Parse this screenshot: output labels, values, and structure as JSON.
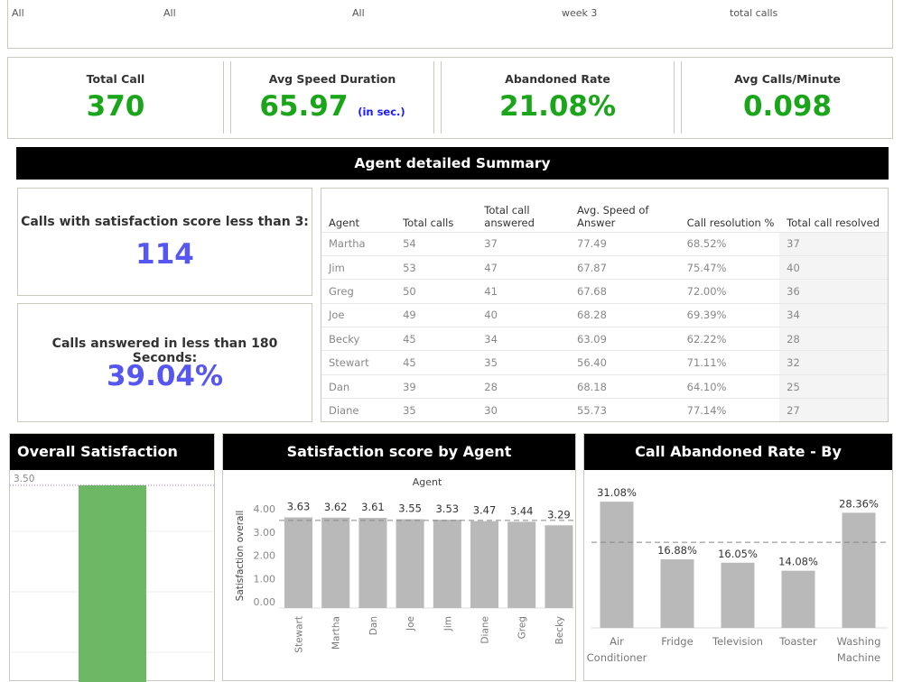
{
  "filters": [
    {
      "value": "All"
    },
    {
      "value": "All"
    },
    {
      "value": "All"
    },
    {
      "value": "week 3"
    },
    {
      "value": "total calls"
    }
  ],
  "kpis": [
    {
      "title": "Total Call",
      "value": "370",
      "unit": ""
    },
    {
      "title": "Avg Speed Duration",
      "value": "65.97",
      "unit": "(in sec.)"
    },
    {
      "title": "Abandoned Rate",
      "value": "21.08%",
      "unit": ""
    },
    {
      "title": "Avg Calls/Minute",
      "value": "0.098",
      "unit": ""
    }
  ],
  "summary_banner": "Agent detailed Summary",
  "stats": {
    "satisfaction_label": "Calls with satisfaction score less than 3:",
    "satisfaction_value": "114",
    "answered_label": "Calls answered in less than 180 Seconds:",
    "answered_value": "39.04%"
  },
  "agent_table": {
    "headers": [
      "Agent",
      "Total calls",
      "Total call answered",
      "Avg. Speed of Answer",
      "Call resolution %",
      "Total call resolved"
    ],
    "rows": [
      [
        "Martha",
        "54",
        "37",
        "77.49",
        "68.52%",
        "37"
      ],
      [
        "Jim",
        "53",
        "47",
        "67.87",
        "75.47%",
        "40"
      ],
      [
        "Greg",
        "50",
        "41",
        "67.68",
        "72.00%",
        "36"
      ],
      [
        "Joe",
        "49",
        "40",
        "68.28",
        "69.39%",
        "34"
      ],
      [
        "Becky",
        "45",
        "34",
        "63.09",
        "62.22%",
        "28"
      ],
      [
        "Stewart",
        "45",
        "35",
        "56.40",
        "71.11%",
        "32"
      ],
      [
        "Dan",
        "39",
        "28",
        "68.18",
        "64.10%",
        "25"
      ],
      [
        "Diane",
        "35",
        "30",
        "55.73",
        "77.14%",
        "27"
      ]
    ]
  },
  "colors": {
    "kpi_green": "#1aa51a",
    "stat_blue": "#5656f0",
    "bar_grey": "#b9b9b9",
    "bar_green": "#6db864"
  },
  "chart_data": [
    {
      "type": "bar",
      "title": "Overall Satisfaction Score",
      "values": [
        3.5
      ],
      "reference_label": "3.50"
    },
    {
      "type": "bar",
      "title": "Satisfaction score by Agent",
      "xlabel": "Agent",
      "ylabel": "Satisfaction overall",
      "categories": [
        "Stewart",
        "Martha",
        "Dan",
        "Joe",
        "Jim",
        "Diane",
        "Greg",
        "Becky"
      ],
      "values": [
        3.63,
        3.62,
        3.61,
        3.55,
        3.53,
        3.47,
        3.44,
        3.29
      ],
      "data_labels": [
        "3.63",
        "3.62",
        "3.61",
        "3.55",
        "3.53",
        "3.47",
        "3.44",
        "3.29"
      ],
      "ytick_labels": [
        "4.00",
        "3.00",
        "2.00",
        "1.00",
        "0.00"
      ],
      "ylim": [
        0,
        4.3
      ],
      "reference_line": 3.5
    },
    {
      "type": "bar",
      "title": "Call Abandoned Rate - By Department",
      "categories": [
        "Air Conditioner",
        "Fridge",
        "Television",
        "Toaster",
        "Washing Machine"
      ],
      "values": [
        31.08,
        16.88,
        16.05,
        14.08,
        28.36
      ],
      "data_labels": [
        "31.08%",
        "16.88%",
        "16.05%",
        "14.08%",
        "28.36%"
      ],
      "reference_line": 21.08
    }
  ]
}
